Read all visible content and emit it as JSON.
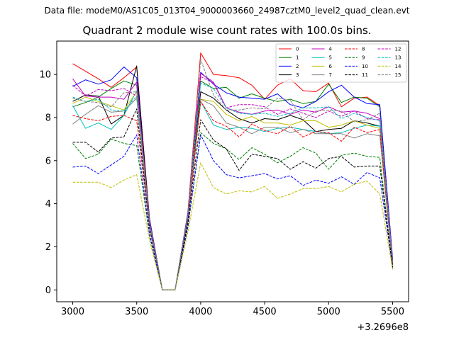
{
  "header": {
    "data_file": "Data file: modeM0/AS1C05_013T04_9000003660_24987cztM0_level2_quad_clean.evt"
  },
  "chart_data": {
    "type": "line",
    "title": "Quadrant 2 module wise count rates with 100.0s bins.",
    "xlabel": "",
    "ylabel": "",
    "x_offset_label": "+3.2696e8",
    "xlim": [
      2875,
      5625
    ],
    "ylim": [
      -0.55,
      11.55
    ],
    "x_ticks": [
      3000,
      3500,
      4000,
      4500,
      5000,
      5500
    ],
    "x_tick_labels": [
      "3000",
      "3500",
      "4000",
      "4500",
      "5000",
      "5500"
    ],
    "y_ticks": [
      0,
      2,
      4,
      6,
      8,
      10
    ],
    "y_tick_labels": [
      "0",
      "2",
      "4",
      "6",
      "8",
      "10"
    ],
    "legend_position": "top-right",
    "x": [
      3000,
      3100,
      3200,
      3300,
      3400,
      3500,
      3600,
      3700,
      3800,
      3900,
      4000,
      4100,
      4200,
      4300,
      4400,
      4500,
      4600,
      4700,
      4800,
      4900,
      5000,
      5100,
      5200,
      5300,
      5400,
      5500
    ],
    "series": [
      {
        "name": "0",
        "color": "#ff0000",
        "dash": "solid",
        "values": [
          10.5,
          10.15,
          9.8,
          9.4,
          9.85,
          10.35,
          3.3,
          0,
          0,
          3.6,
          11.0,
          10.0,
          9.95,
          9.85,
          9.5,
          8.85,
          9.5,
          9.8,
          9.25,
          9.2,
          9.6,
          8.5,
          8.9,
          8.95,
          8.55,
          1.4
        ]
      },
      {
        "name": "1",
        "color": "#008000",
        "dash": "solid",
        "values": [
          8.5,
          8.7,
          8.95,
          9.35,
          9.7,
          9.5,
          3.2,
          0,
          0,
          3.5,
          9.7,
          9.35,
          9.4,
          8.9,
          9.1,
          8.9,
          8.75,
          8.85,
          8.65,
          8.75,
          9.55,
          8.7,
          8.95,
          8.9,
          8.5,
          1.35
        ]
      },
      {
        "name": "2",
        "color": "#0000ff",
        "dash": "solid",
        "values": [
          9.45,
          9.75,
          9.55,
          9.75,
          10.35,
          9.85,
          3.3,
          0,
          0,
          3.6,
          10.1,
          9.55,
          9.15,
          8.95,
          8.9,
          8.85,
          9.1,
          8.6,
          8.45,
          8.75,
          9.2,
          9.5,
          8.95,
          8.65,
          8.6,
          1.45
        ]
      },
      {
        "name": "3",
        "color": "#000000",
        "dash": "solid",
        "values": [
          8.75,
          9.05,
          9.0,
          7.7,
          8.1,
          10.4,
          3.2,
          0,
          0,
          3.5,
          9.2,
          8.9,
          8.35,
          7.95,
          7.75,
          7.95,
          7.9,
          8.1,
          7.9,
          7.35,
          7.45,
          7.5,
          7.85,
          7.75,
          7.6,
          1.25
        ]
      },
      {
        "name": "4",
        "color": "#bf00bf",
        "dash": "solid",
        "values": [
          9.8,
          9.0,
          8.95,
          8.95,
          8.85,
          9.65,
          3.2,
          0,
          0,
          3.5,
          10.05,
          9.65,
          8.45,
          8.25,
          8.15,
          8.3,
          8.35,
          8.15,
          8.35,
          8.25,
          8.5,
          8.25,
          8.3,
          8.2,
          7.95,
          1.3
        ]
      },
      {
        "name": "5",
        "color": "#00bfbf",
        "dash": "solid",
        "values": [
          8.55,
          7.5,
          7.75,
          7.45,
          8.1,
          9.25,
          3.1,
          0,
          0,
          3.4,
          8.75,
          7.65,
          7.45,
          7.55,
          7.5,
          7.35,
          7.5,
          7.55,
          7.45,
          7.35,
          7.25,
          7.3,
          7.5,
          7.65,
          7.6,
          1.2
        ]
      },
      {
        "name": "6",
        "color": "#bfbf00",
        "dash": "solid",
        "values": [
          8.65,
          8.95,
          8.75,
          8.55,
          8.35,
          9.2,
          3.1,
          0,
          0,
          3.4,
          8.85,
          8.75,
          8.15,
          7.85,
          8.05,
          7.75,
          7.75,
          7.65,
          7.85,
          7.85,
          7.55,
          7.65,
          7.85,
          7.65,
          7.5,
          1.2
        ]
      },
      {
        "name": "7",
        "color": "#808080",
        "dash": "solid",
        "values": [
          7.7,
          8.15,
          8.55,
          8.25,
          8.3,
          8.9,
          3.1,
          0,
          0,
          3.4,
          8.85,
          8.55,
          7.75,
          7.55,
          7.25,
          7.55,
          7.55,
          7.3,
          7.45,
          7.25,
          7.25,
          7.25,
          7.05,
          7.25,
          7.15,
          1.15
        ]
      },
      {
        "name": "8",
        "color": "#ff0000",
        "dash": "dashed",
        "values": [
          8.1,
          7.95,
          7.85,
          8.05,
          8.1,
          7.85,
          2.9,
          0,
          0,
          3.2,
          8.75,
          7.85,
          7.6,
          7.1,
          7.7,
          7.4,
          7.25,
          7.6,
          7.1,
          7.35,
          7.3,
          6.9,
          7.55,
          7.3,
          7.45,
          1.15
        ]
      },
      {
        "name": "9",
        "color": "#008000",
        "dash": "dashed",
        "values": [
          6.8,
          6.1,
          6.3,
          7.0,
          6.8,
          6.7,
          2.5,
          0,
          0,
          2.9,
          7.3,
          6.8,
          6.55,
          6.05,
          6.6,
          6.3,
          5.9,
          6.2,
          6.6,
          6.35,
          5.6,
          6.25,
          6.35,
          6.2,
          6.15,
          1.0
        ]
      },
      {
        "name": "10",
        "color": "#0000ff",
        "dash": "dashed",
        "values": [
          5.7,
          5.75,
          5.4,
          5.8,
          6.2,
          7.2,
          2.6,
          0,
          0,
          3.0,
          7.2,
          6.0,
          5.35,
          5.2,
          5.3,
          5.4,
          5.15,
          5.3,
          4.85,
          5.1,
          4.95,
          5.25,
          4.9,
          5.45,
          5.2,
          1.05
        ]
      },
      {
        "name": "11",
        "color": "#000000",
        "dash": "dashed",
        "values": [
          6.85,
          6.85,
          6.4,
          7.05,
          7.1,
          8.4,
          2.9,
          0,
          0,
          3.2,
          7.9,
          6.95,
          6.55,
          5.55,
          6.3,
          6.2,
          6.1,
          5.6,
          5.95,
          5.65,
          6.1,
          6.2,
          5.7,
          5.75,
          5.75,
          1.05
        ]
      },
      {
        "name": "12",
        "color": "#bf00bf",
        "dash": "dashed",
        "values": [
          9.5,
          9.0,
          9.3,
          9.25,
          9.35,
          9.0,
          3.1,
          0,
          0,
          3.5,
          9.9,
          9.6,
          8.45,
          8.6,
          8.6,
          8.5,
          8.15,
          8.4,
          8.2,
          8.0,
          8.3,
          8.05,
          8.3,
          7.95,
          7.9,
          1.3
        ]
      },
      {
        "name": "13",
        "color": "#00bfbf",
        "dash": "dashed",
        "values": [
          8.95,
          8.75,
          8.85,
          8.35,
          8.3,
          9.0,
          3.1,
          0,
          0,
          3.5,
          9.6,
          9.35,
          8.45,
          8.2,
          8.15,
          8.2,
          8.05,
          8.2,
          8.45,
          8.45,
          8.5,
          7.95,
          8.2,
          8.0,
          7.85,
          1.3
        ]
      },
      {
        "name": "14",
        "color": "#bfbf00",
        "dash": "dashed",
        "values": [
          5.0,
          5.0,
          5.0,
          4.75,
          5.1,
          5.35,
          2.3,
          0,
          0,
          2.7,
          5.9,
          4.75,
          4.45,
          4.6,
          4.55,
          4.8,
          4.25,
          4.45,
          4.7,
          4.7,
          4.8,
          4.55,
          4.9,
          5.05,
          4.45,
          0.95
        ]
      },
      {
        "name": "15",
        "color": "#808080",
        "dash": "dashed",
        "values": [
          8.9,
          8.75,
          8.7,
          8.5,
          9.15,
          9.2,
          3.1,
          0,
          0,
          3.5,
          10.7,
          9.05,
          8.35,
          8.35,
          8.45,
          8.4,
          8.9,
          8.8,
          7.9,
          8.3,
          8.35,
          8.3,
          7.8,
          7.9,
          8.2,
          1.3
        ]
      }
    ]
  }
}
